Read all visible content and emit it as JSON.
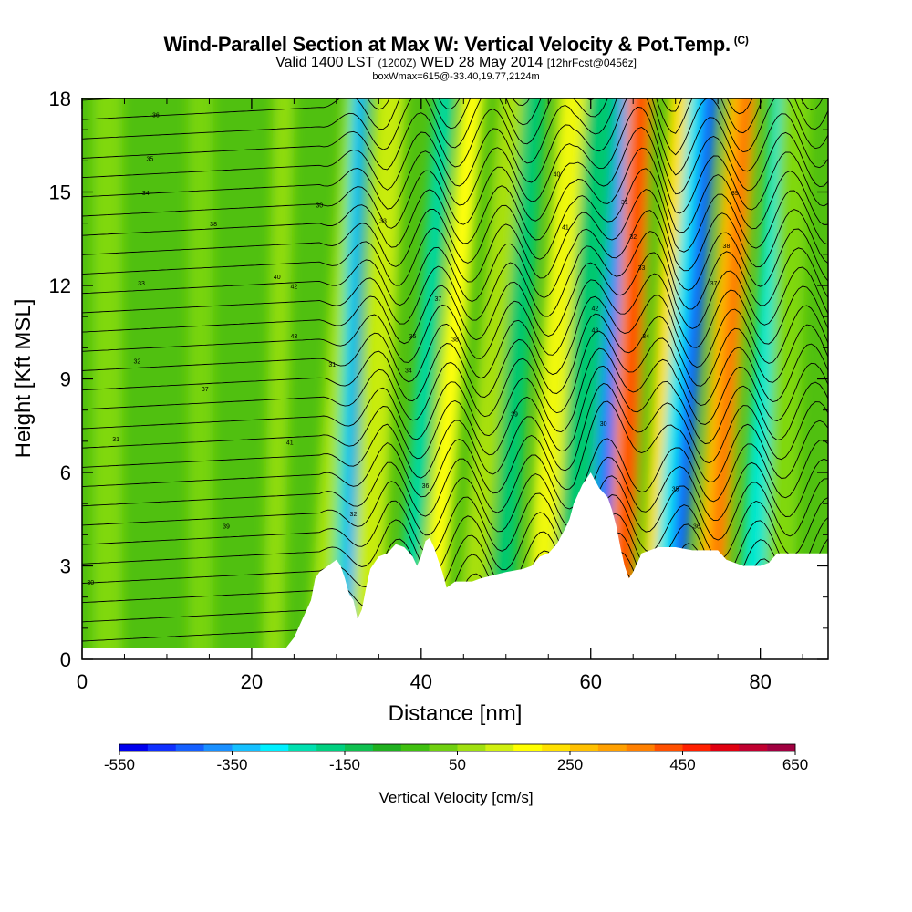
{
  "header": {
    "title": "Wind-Parallel Section at Max W: Vertical Velocity & Pot.Temp.",
    "copyright": "(C)",
    "valid_prefix": "Valid 1400 LST",
    "valid_utc": "(1200Z)",
    "valid_date": "WED 28 May 2014",
    "forecast": "[12hrFcst@0456z]",
    "box_info": "boxWmax=615@-33.40,19.77,2124m"
  },
  "chart_data": {
    "type": "heatmap",
    "xlabel": "Distance [nm]",
    "ylabel": "Height [Kft MSL]",
    "xlim": [
      0,
      88
    ],
    "ylim": [
      0,
      18
    ],
    "x_ticks": [
      0,
      20,
      40,
      60,
      80
    ],
    "y_ticks": [
      0,
      3,
      6,
      9,
      12,
      15,
      18
    ],
    "colorbar": {
      "label": "Vertical Velocity [cm/s]",
      "ticks": [
        -550,
        -350,
        -150,
        50,
        250,
        450,
        650
      ],
      "colors": [
        "#0000ee",
        "#1030ff",
        "#1560ff",
        "#1a90ff",
        "#15c0ff",
        "#00f0ff",
        "#00e0b0",
        "#00d080",
        "#10c050",
        "#20b020",
        "#40c010",
        "#70d010",
        "#a0e010",
        "#d0f010",
        "#ffff00",
        "#ffe000",
        "#ffc000",
        "#ffa000",
        "#ff8000",
        "#ff5000",
        "#ff2000",
        "#e00010",
        "#c00030",
        "#a00040"
      ]
    },
    "terrain_kft": [
      [
        0,
        0.35
      ],
      [
        24,
        0.35
      ],
      [
        25,
        0.7
      ],
      [
        26,
        1.3
      ],
      [
        27,
        1.9
      ],
      [
        27.5,
        2.6
      ],
      [
        28,
        2.8
      ],
      [
        29,
        3.0
      ],
      [
        30,
        3.2
      ],
      [
        30.5,
        3.0
      ],
      [
        31,
        2.6
      ],
      [
        31.5,
        2.1
      ],
      [
        32,
        1.9
      ],
      [
        32.5,
        1.3
      ],
      [
        33,
        1.6
      ],
      [
        33.5,
        2.3
      ],
      [
        34,
        2.9
      ],
      [
        35,
        3.3
      ],
      [
        36,
        3.4
      ],
      [
        37,
        3.7
      ],
      [
        38,
        3.6
      ],
      [
        39,
        3.3
      ],
      [
        39.5,
        3.0
      ],
      [
        40,
        3.3
      ],
      [
        40.5,
        3.8
      ],
      [
        41,
        3.9
      ],
      [
        41.5,
        3.6
      ],
      [
        42,
        3.2
      ],
      [
        42.5,
        2.8
      ],
      [
        43,
        2.3
      ],
      [
        44,
        2.5
      ],
      [
        46,
        2.5
      ],
      [
        47,
        2.6
      ],
      [
        50,
        2.8
      ],
      [
        52,
        2.9
      ],
      [
        53,
        3.0
      ],
      [
        54,
        3.3
      ],
      [
        55,
        3.4
      ],
      [
        56,
        3.7
      ],
      [
        57,
        4.2
      ],
      [
        57.5,
        4.5
      ],
      [
        58,
        5.0
      ],
      [
        59,
        5.6
      ],
      [
        60,
        6.0
      ],
      [
        61,
        5.5
      ],
      [
        62,
        5.2
      ],
      [
        62.5,
        4.8
      ],
      [
        63,
        4.3
      ],
      [
        63.5,
        3.6
      ],
      [
        64,
        3.0
      ],
      [
        64.5,
        2.6
      ],
      [
        65,
        2.8
      ],
      [
        65.5,
        3.1
      ],
      [
        66,
        3.4
      ],
      [
        68,
        3.6
      ],
      [
        70,
        3.6
      ],
      [
        72,
        3.5
      ],
      [
        74,
        3.5
      ],
      [
        75,
        3.5
      ],
      [
        76,
        3.2
      ],
      [
        77,
        3.1
      ],
      [
        78,
        3.0
      ],
      [
        80,
        3.0
      ],
      [
        81,
        3.1
      ],
      [
        82,
        3.4
      ],
      [
        88,
        3.4
      ]
    ],
    "isentrope_labels": [
      "30",
      "31",
      "32",
      "33",
      "34",
      "35",
      "36",
      "37",
      "38",
      "39",
      "40",
      "41",
      "42",
      "43"
    ]
  }
}
